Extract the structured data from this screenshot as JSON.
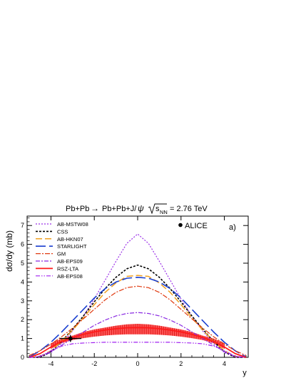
{
  "chart_data": {
    "type": "line",
    "title": {
      "process_prefix": "Pb+Pb",
      "arrow": "→",
      "process_suffix": "Pb+Pb+J/",
      "psi": "ψ",
      "energy_symbol": "s",
      "energy_subscript": "NN",
      "energy_value": "= 2.76 TeV"
    },
    "panel_label": "a)",
    "xlabel": "y",
    "ylabel": "dσ/dy (mb)",
    "xlim": [
      -5.1,
      5.1
    ],
    "ylim": [
      0,
      7.5
    ],
    "xticks": [
      -4,
      -2,
      0,
      2,
      4
    ],
    "xtick_labels": [
      "-4",
      "-2",
      "0",
      "2",
      "4"
    ],
    "yticks": [
      0,
      1,
      2,
      3,
      4,
      5,
      6,
      7
    ],
    "ytick_labels": [
      "0",
      "1",
      "2",
      "3",
      "4",
      "5",
      "6",
      "7"
    ],
    "x": [
      -5,
      -4.5,
      -4,
      -3.5,
      -3,
      -2.5,
      -2,
      -1.5,
      -1,
      -0.5,
      0,
      0.5,
      1,
      1.5,
      2,
      2.5,
      3,
      3.5,
      4,
      4.5,
      5
    ],
    "series": [
      {
        "name": "AB-MSTW08",
        "color": "#9b30e8",
        "dash": "2,2",
        "width": 1.2,
        "values": [
          0,
          0,
          0.25,
          0.75,
          1.4,
          2.2,
          3.1,
          4.1,
          5.1,
          6.05,
          6.55,
          6.05,
          5.1,
          4.1,
          3.1,
          2.2,
          1.4,
          0.75,
          0.25,
          0,
          0
        ]
      },
      {
        "name": "CSS",
        "color": "#000000",
        "dash": "3,2",
        "width": 1.6,
        "values": [
          0,
          0,
          0.3,
          0.85,
          1.5,
          2.2,
          2.95,
          3.65,
          4.25,
          4.7,
          4.9,
          4.7,
          4.25,
          3.65,
          2.95,
          2.2,
          1.5,
          0.85,
          0.3,
          0,
          0
        ]
      },
      {
        "name": "AB-HKN07",
        "color": "#f0a020",
        "dash": "9,4",
        "width": 1.5,
        "values": [
          0,
          0.05,
          0.35,
          0.85,
          1.45,
          2.1,
          2.8,
          3.45,
          3.95,
          4.3,
          4.35,
          4.3,
          3.95,
          3.45,
          2.8,
          2.1,
          1.45,
          0.85,
          0.35,
          0.05,
          0
        ]
      },
      {
        "name": "STARLIGHT",
        "color": "#1a3fd0",
        "dash": "14,5",
        "width": 1.6,
        "values": [
          0.02,
          0.35,
          0.8,
          1.35,
          1.95,
          2.55,
          3.15,
          3.65,
          4.0,
          4.2,
          4.25,
          4.2,
          4.0,
          3.65,
          3.15,
          2.55,
          1.95,
          1.35,
          0.8,
          0.35,
          0.02
        ]
      },
      {
        "name": "GM",
        "color": "#e03a10",
        "dash": "7,2,2,2",
        "width": 1.2,
        "values": [
          0.1,
          0.35,
          0.7,
          1.1,
          1.55,
          2.05,
          2.55,
          3.05,
          3.45,
          3.7,
          3.78,
          3.7,
          3.45,
          3.05,
          2.55,
          2.05,
          1.55,
          1.1,
          0.7,
          0.35,
          0.1
        ]
      },
      {
        "name": "AB-EPS09",
        "color": "#8a2be2",
        "dash": "6,2,2,2",
        "width": 1.2,
        "values": [
          0,
          0.05,
          0.3,
          0.65,
          1.0,
          1.35,
          1.7,
          1.98,
          2.2,
          2.33,
          2.38,
          2.33,
          2.2,
          1.98,
          1.7,
          1.35,
          1.0,
          0.65,
          0.3,
          0.05,
          0
        ]
      },
      {
        "name": "RSZ-LTA",
        "color": "#ff1a1a",
        "dash": "",
        "width": 1.8,
        "values": [
          0,
          0.2,
          0.55,
          0.85,
          1.05,
          1.22,
          1.35,
          1.45,
          1.52,
          1.57,
          1.58,
          1.57,
          1.52,
          1.45,
          1.35,
          1.22,
          1.05,
          0.85,
          0.55,
          0.2,
          0
        ]
      },
      {
        "name": "AB-EPS08",
        "color": "#a020f0",
        "dash": "6,2,1.5,2,1.5,2",
        "width": 1.2,
        "values": [
          0,
          0.05,
          0.35,
          0.6,
          0.72,
          0.76,
          0.78,
          0.8,
          0.8,
          0.8,
          0.8,
          0.8,
          0.8,
          0.8,
          0.78,
          0.76,
          0.72,
          0.6,
          0.35,
          0.05,
          0
        ]
      }
    ],
    "band": {
      "color": "#ff1a1a",
      "x": [
        -4,
        -3.5,
        -3,
        -2.5,
        -2,
        -1.5,
        -1,
        -0.5,
        0,
        0.5,
        1,
        1.5,
        2,
        2.5,
        3,
        3.5,
        4
      ],
      "lower": [
        0.45,
        0.75,
        0.92,
        1.02,
        1.1,
        1.16,
        1.2,
        1.22,
        1.22,
        1.22,
        1.2,
        1.16,
        1.1,
        1.02,
        0.92,
        0.75,
        0.45
      ],
      "upper": [
        0.75,
        1.0,
        1.15,
        1.35,
        1.48,
        1.58,
        1.68,
        1.75,
        1.78,
        1.75,
        1.68,
        1.58,
        1.48,
        1.35,
        1.15,
        1.0,
        0.75
      ]
    },
    "data_points": [
      {
        "name": "ALICE",
        "x": -3.1,
        "y": 1.0,
        "xerr": 0.5,
        "yerr": 0.18,
        "color": "#000000"
      }
    ],
    "legend": "top-left",
    "data_legend": "top-right"
  }
}
